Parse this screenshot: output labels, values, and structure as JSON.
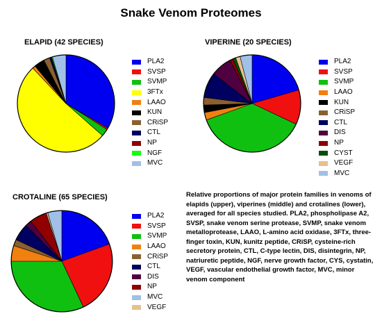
{
  "title": "Snake Venom Proteomes",
  "caption": "Relative proportions of major protein families in venoms of elapids (upper), viperines (middle) and crotalines (lower), averaged for all species studied. PLA2, phospholipase A2, SVSP, snake venom serine protease, SVMP, snake venom metalloprotease, LAAO, L-amino acid oxidase, 3FTx, three-finger toxin, KUN, kunitz peptide, CRiSP, cysteine-rich secretory protein, CTL, C-type lectin, DIS, disintegrin, NP, natriuretic peptide, NGF, nerve growth factor, CYS, cystatin, VEGF, vascular endothelial growth factor, MVC, minor venom component",
  "colors": {
    "PLA2": "#0000f0",
    "SVSP": "#f01010",
    "SVMP": "#10c010",
    "3FTx": "#ffff00",
    "LAAO": "#f08010",
    "KUN": "#000000",
    "CRiSP": "#8a6030",
    "CTL": "#000060",
    "DIS": "#500040",
    "NP": "#900000",
    "NGF": "#10ff10",
    "CYST": "#005000",
    "VEGF": "#e8c090",
    "MVC": "#a0c0e8"
  },
  "chart_data": [
    {
      "type": "pie",
      "title": "ELAPID (42 SPECIES)",
      "legend_position": "right",
      "legend": [
        "PLA2",
        "SVSP",
        "SVMP",
        "3FTx",
        "LAAO",
        "KUN",
        "CRiSP",
        "CTL",
        "NP",
        "NGF",
        "MVC"
      ],
      "slices": [
        {
          "label": "PLA2",
          "value": 33.5
        },
        {
          "label": "SVSP",
          "value": 0.5
        },
        {
          "label": "SVMP",
          "value": 2.5
        },
        {
          "label": "3FTx",
          "value": 51.5
        },
        {
          "label": "LAAO",
          "value": 1.0
        },
        {
          "label": "KUN",
          "value": 3.5
        },
        {
          "label": "CRiSP",
          "value": 2.0
        },
        {
          "label": "CTL",
          "value": 0.5
        },
        {
          "label": "NP",
          "value": 0.2
        },
        {
          "label": "NGF",
          "value": 0.3
        },
        {
          "label": "MVC",
          "value": 4.5
        }
      ]
    },
    {
      "type": "pie",
      "title": "VIPERINE (20 SPECIES)",
      "legend_position": "right",
      "legend": [
        "PLA2",
        "SVSP",
        "SVMP",
        "LAAO",
        "KUN",
        "CRiSP",
        "CTL",
        "DIS",
        "NP",
        "CYST",
        "VEGF",
        "MVC"
      ],
      "slices": [
        {
          "label": "PLA2",
          "value": 20.5
        },
        {
          "label": "SVSP",
          "value": 11.5
        },
        {
          "label": "SVMP",
          "value": 37.5
        },
        {
          "label": "LAAO",
          "value": 2.5
        },
        {
          "label": "KUN",
          "value": 2.5
        },
        {
          "label": "CRiSP",
          "value": 2.5
        },
        {
          "label": "CTL",
          "value": 8.5
        },
        {
          "label": "DIS",
          "value": 7.0
        },
        {
          "label": "NP",
          "value": 1.0
        },
        {
          "label": "CYST",
          "value": 1.0
        },
        {
          "label": "VEGF",
          "value": 1.5
        },
        {
          "label": "MVC",
          "value": 4.0
        }
      ]
    },
    {
      "type": "pie",
      "title": "CROTALINE (65 SPECIES)",
      "legend_position": "right",
      "legend": [
        "PLA2",
        "SVSP",
        "SVMP",
        "LAAO",
        "CRiSP",
        "CTL",
        "DIS",
        "NP",
        "MVC",
        "VEGF"
      ],
      "slices": [
        {
          "label": "PLA2",
          "value": 19.5
        },
        {
          "label": "SVSP",
          "value": 23.5
        },
        {
          "label": "SVMP",
          "value": 32.0
        },
        {
          "label": "LAAO",
          "value": 5.0
        },
        {
          "label": "CRiSP",
          "value": 2.0
        },
        {
          "label": "CTL",
          "value": 5.5
        },
        {
          "label": "DIS",
          "value": 2.0
        },
        {
          "label": "NP",
          "value": 5.5
        },
        {
          "label": "VEGF",
          "value": 0.5
        },
        {
          "label": "MVC",
          "value": 4.5
        }
      ]
    }
  ]
}
